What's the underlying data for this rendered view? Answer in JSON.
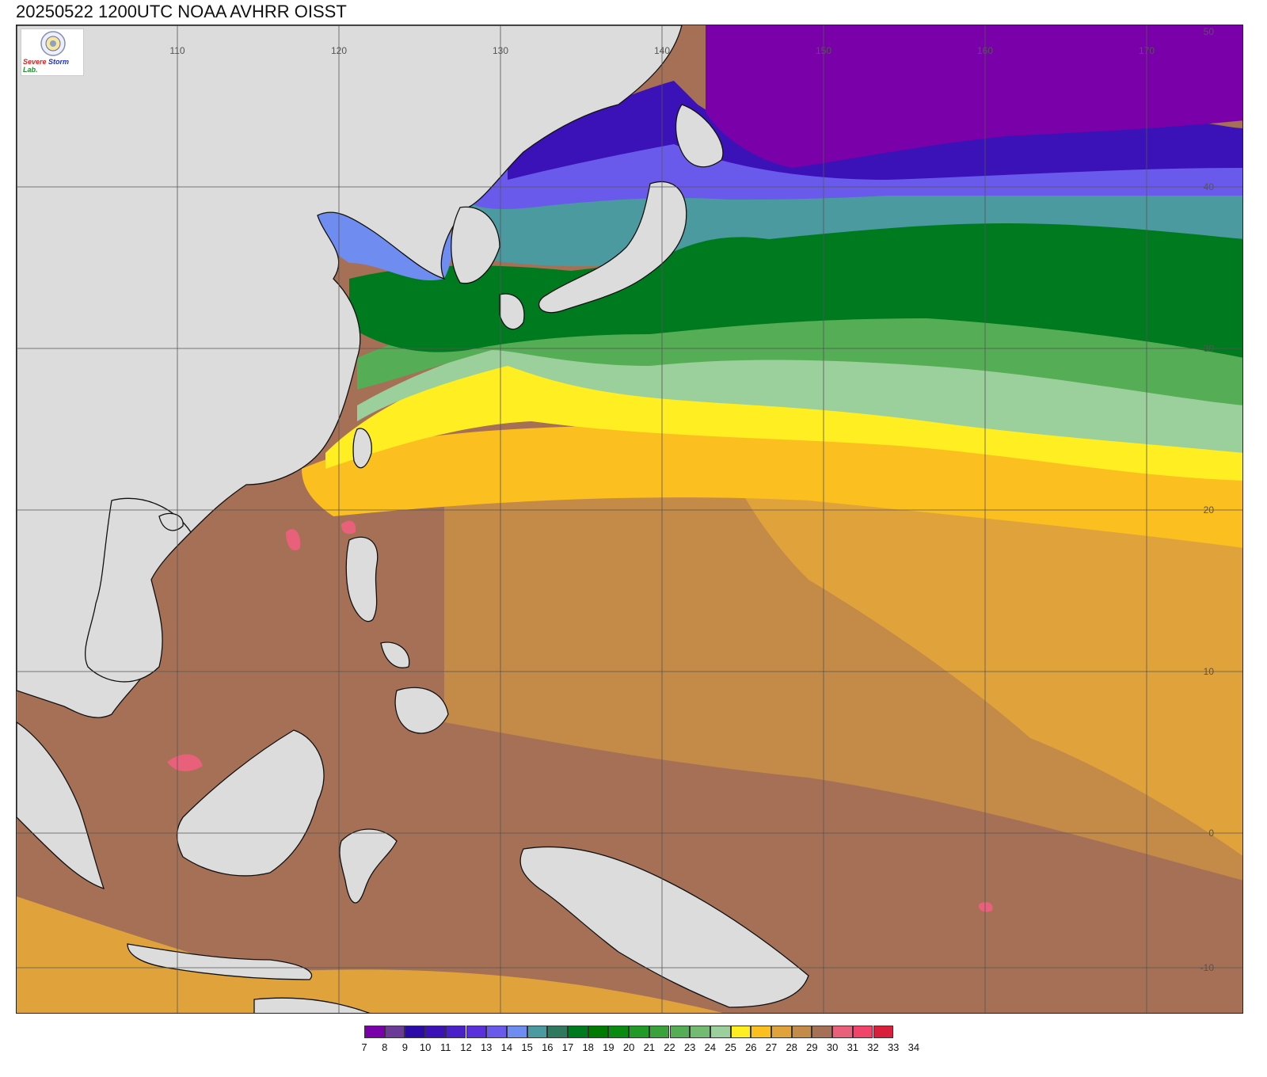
{
  "title": "20250522 1200UTC NOAA AVHRR OISST",
  "logo": {
    "name": "Severe Storm Lab",
    "text_severe": "Severe",
    "text_storm": "Storm",
    "text_lab": "Lab."
  },
  "map": {
    "lon_ticks": [
      "110",
      "120",
      "130",
      "140",
      "150",
      "160",
      "170"
    ],
    "lat_ticks": [
      "50",
      "40",
      "30",
      "20",
      "10",
      "0",
      "-10"
    ]
  },
  "legend": {
    "values": [
      "7",
      "8",
      "9",
      "10",
      "11",
      "12",
      "13",
      "14",
      "15",
      "16",
      "17",
      "18",
      "19",
      "20",
      "21",
      "22",
      "23",
      "24",
      "25",
      "26",
      "27",
      "28",
      "29",
      "30",
      "31",
      "32",
      "33",
      "34"
    ],
    "colors": [
      "#7a00aa",
      "#6a3c98",
      "#2c0aa8",
      "#3b12b8",
      "#4a20c8",
      "#5a30dc",
      "#6a5aec",
      "#6f8cf0",
      "#4a9aa0",
      "#2f7a5e",
      "#007a1e",
      "#007a00",
      "#0a8a10",
      "#229a28",
      "#3aa23a",
      "#55ad55",
      "#73bb73",
      "#9bcf9b",
      "#ffee22",
      "#fbbf20",
      "#e0a33c",
      "#c48a48",
      "#a57055",
      "#e8607a",
      "#f0446a",
      "#d8203c"
    ]
  },
  "colors": {
    "land": "#dcdcdc",
    "sst_warm_brown": "#a57055",
    "sst_orange": "#c48a48",
    "sst_gold": "#e0a33c",
    "sst_yellow": "#ffee22",
    "sst_green": "#007a00",
    "sst_purple": "#7a00aa"
  }
}
